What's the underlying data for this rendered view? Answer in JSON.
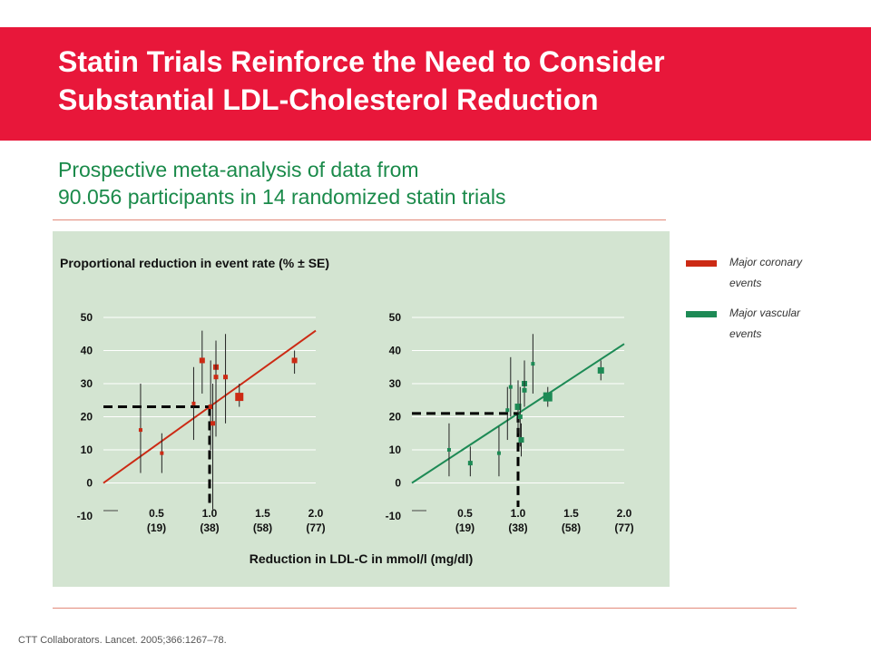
{
  "header": {
    "title_line1": "Statin Trials Reinforce the Need to Consider",
    "title_line2": "Substantial LDL-Cholesterol Reduction",
    "background_color": "#e8173a"
  },
  "subtitle": {
    "line1": "Prospective meta-analysis of data from",
    "line2": "90.056 participants in 14 randomized statin trials"
  },
  "legend": {
    "items": [
      {
        "label": "Major coronary events",
        "color": "#cc2a14"
      },
      {
        "label": "Major vascular events",
        "color": "#1d8a55"
      }
    ]
  },
  "citation": "CTT  Collaborators. Lancet. 2005;366:1267–78.",
  "chart_data": {
    "title": "Proportional reduction in event rate (% ± SE)",
    "xlabel": "Reduction in LDL-C in mmol/l (mg/dl)",
    "ylabel": "",
    "ylim": [
      -10,
      50
    ],
    "xlim": [
      0,
      2.0
    ],
    "y_ticks": [
      "50",
      "40",
      "30",
      "20",
      "10",
      "0",
      "-10"
    ],
    "x_ticks": [
      {
        "value": 0.5,
        "line1": "0.5",
        "line2": "(19)"
      },
      {
        "value": 1.0,
        "line1": "1.0",
        "line2": "(38)"
      },
      {
        "value": 1.5,
        "line1": "1.5",
        "line2": "(58)"
      },
      {
        "value": 2.0,
        "line1": "2.0",
        "line2": "(77)"
      }
    ],
    "panels": [
      {
        "type": "scatter",
        "series_name": "Major coronary events",
        "color": "#cc2a14",
        "regression": {
          "x0": 0,
          "y0": 0,
          "x1": 2.0,
          "y1": 46
        },
        "reference": {
          "x": 1.0,
          "y": 23
        },
        "points": [
          {
            "x": 0.35,
            "y": 16,
            "lo": 3,
            "hi": 30,
            "size": 4
          },
          {
            "x": 0.55,
            "y": 9,
            "lo": 3,
            "hi": 15,
            "size": 4
          },
          {
            "x": 0.85,
            "y": 24,
            "lo": 13,
            "hi": 35,
            "size": 4
          },
          {
            "x": 0.93,
            "y": 37,
            "lo": 27,
            "hi": 46,
            "size": 6
          },
          {
            "x": 1.01,
            "y": 23,
            "lo": 10,
            "hi": 37,
            "size": 5
          },
          {
            "x": 1.03,
            "y": 18,
            "lo": -8,
            "hi": 30,
            "size": 5
          },
          {
            "x": 1.06,
            "y": 35,
            "lo": 24,
            "hi": 43,
            "size": 6
          },
          {
            "x": 1.06,
            "y": 32,
            "lo": 14,
            "hi": 42,
            "size": 5
          },
          {
            "x": 1.15,
            "y": 32,
            "lo": 18,
            "hi": 45,
            "size": 5
          },
          {
            "x": 1.28,
            "y": 26,
            "lo": 23,
            "hi": 30,
            "size": 9
          },
          {
            "x": 1.8,
            "y": 37,
            "lo": 33,
            "hi": 40,
            "size": 6
          }
        ]
      },
      {
        "type": "scatter",
        "series_name": "Major vascular events",
        "color": "#1d8a55",
        "regression": {
          "x0": 0,
          "y0": 0,
          "x1": 2.0,
          "y1": 42
        },
        "reference": {
          "x": 1.0,
          "y": 21
        },
        "points": [
          {
            "x": 0.35,
            "y": 10,
            "lo": 2,
            "hi": 18,
            "size": 4
          },
          {
            "x": 0.55,
            "y": 6,
            "lo": 2,
            "hi": 11,
            "size": 5
          },
          {
            "x": 0.82,
            "y": 9,
            "lo": 2,
            "hi": 17,
            "size": 4
          },
          {
            "x": 0.9,
            "y": 22,
            "lo": 13,
            "hi": 29,
            "size": 4
          },
          {
            "x": 0.93,
            "y": 29,
            "lo": 20,
            "hi": 38,
            "size": 4
          },
          {
            "x": 1.0,
            "y": 23,
            "lo": 15,
            "hi": 31,
            "size": 7
          },
          {
            "x": 1.02,
            "y": 20,
            "lo": 11,
            "hi": 29,
            "size": 5
          },
          {
            "x": 1.03,
            "y": 13,
            "lo": 8,
            "hi": 18,
            "size": 6
          },
          {
            "x": 1.06,
            "y": 30,
            "lo": 24,
            "hi": 37,
            "size": 6
          },
          {
            "x": 1.06,
            "y": 28,
            "lo": 23,
            "hi": 34,
            "size": 5
          },
          {
            "x": 1.14,
            "y": 36,
            "lo": 27,
            "hi": 45,
            "size": 4
          },
          {
            "x": 1.28,
            "y": 26,
            "lo": 23,
            "hi": 29,
            "size": 10
          },
          {
            "x": 1.78,
            "y": 34,
            "lo": 31,
            "hi": 37,
            "size": 7
          }
        ]
      }
    ]
  }
}
